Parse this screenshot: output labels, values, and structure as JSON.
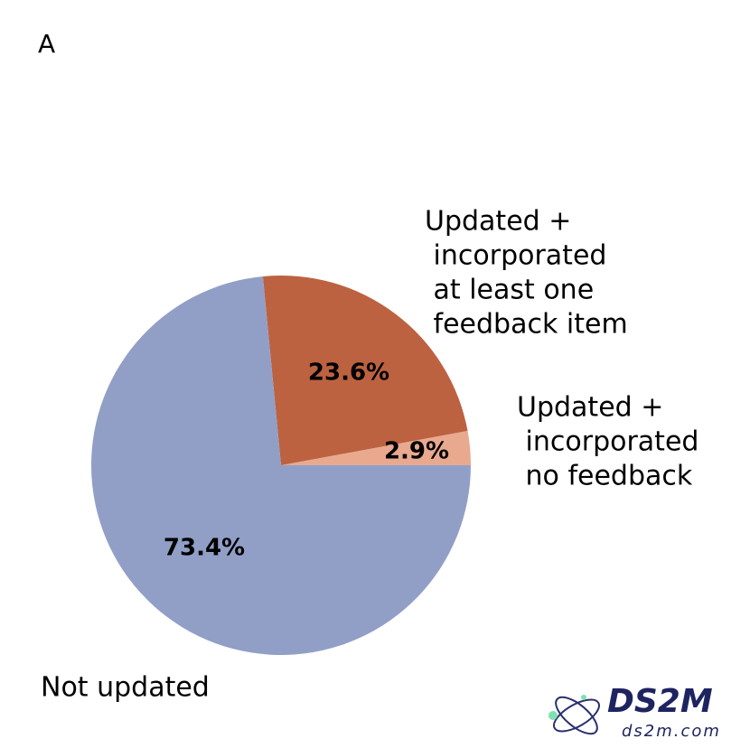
{
  "chart_data": {
    "type": "pie",
    "panel_label": "A",
    "categories": [
      [
        "Updated +",
        " incorporated",
        " no feedback"
      ],
      [
        "Updated +",
        " incorporated",
        " at least one",
        " feedback item"
      ],
      [
        "Not updated"
      ]
    ],
    "values": [
      2.9,
      23.6,
      73.4
    ],
    "value_labels": [
      "2.9%",
      "23.6%",
      "73.4%"
    ],
    "colors": [
      "#e8a98f",
      "#bc6240",
      "#919fc7"
    ],
    "start_angle": 0,
    "counterclockwise": true,
    "watermark": {
      "brand": "DS2M",
      "site": "ds2m.com"
    }
  }
}
